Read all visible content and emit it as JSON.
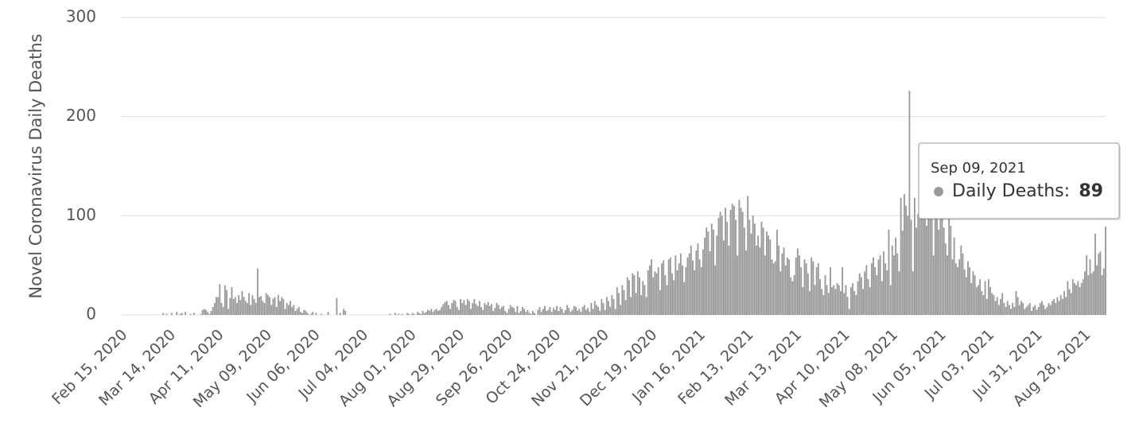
{
  "chart_data": {
    "type": "bar",
    "y_label": "Novel Coronavirus Daily Deaths",
    "color": "#999999",
    "ylim": [
      0,
      300
    ],
    "yticks": [
      0,
      100,
      200,
      300
    ],
    "grid": true,
    "tooltip": {
      "date": "Sep 09, 2021",
      "label": "Daily Deaths:"
    },
    "categories": [
      "Feb 15, 2020",
      null,
      null,
      null,
      null,
      null,
      null,
      null,
      null,
      null,
      null,
      null,
      null,
      null,
      null,
      null,
      null,
      null,
      null,
      null,
      null,
      null,
      null,
      null,
      null,
      null,
      null,
      null,
      "Mar 14, 2020",
      null,
      null,
      null,
      null,
      null,
      null,
      null,
      null,
      null,
      null,
      null,
      null,
      null,
      null,
      null,
      null,
      null,
      null,
      null,
      null,
      null,
      null,
      null,
      null,
      null,
      null,
      null,
      "Apr 11, 2020",
      null,
      null,
      null,
      null,
      null,
      null,
      null,
      null,
      null,
      null,
      null,
      null,
      null,
      null,
      null,
      null,
      null,
      null,
      null,
      null,
      null,
      null,
      null,
      null,
      null,
      null,
      null,
      "May 09, 2020",
      null,
      null,
      null,
      null,
      null,
      null,
      null,
      null,
      null,
      null,
      null,
      null,
      null,
      null,
      null,
      null,
      null,
      null,
      null,
      null,
      null,
      null,
      null,
      null,
      null,
      null,
      null,
      "Jun 06, 2020",
      null,
      null,
      null,
      null,
      null,
      null,
      null,
      null,
      null,
      null,
      null,
      null,
      null,
      null,
      null,
      null,
      null,
      null,
      null,
      null,
      null,
      null,
      null,
      null,
      null,
      null,
      null,
      "Jul 04, 2020",
      null,
      null,
      null,
      null,
      null,
      null,
      null,
      null,
      null,
      null,
      null,
      null,
      null,
      null,
      null,
      null,
      null,
      null,
      null,
      null,
      null,
      null,
      null,
      null,
      null,
      null,
      null,
      "Aug 01, 2020",
      null,
      null,
      null,
      null,
      null,
      null,
      null,
      null,
      null,
      null,
      null,
      null,
      null,
      null,
      null,
      null,
      null,
      null,
      null,
      null,
      null,
      null,
      null,
      null,
      null,
      null,
      null,
      "Aug 29, 2020",
      null,
      null,
      null,
      null,
      null,
      null,
      null,
      null,
      null,
      null,
      null,
      null,
      null,
      null,
      null,
      null,
      null,
      null,
      null,
      null,
      null,
      null,
      null,
      null,
      null,
      null,
      null,
      "Sep 26, 2020",
      null,
      null,
      null,
      null,
      null,
      null,
      null,
      null,
      null,
      null,
      null,
      null,
      null,
      null,
      null,
      null,
      null,
      null,
      null,
      null,
      null,
      null,
      null,
      null,
      null,
      null,
      null,
      "Oct 24, 2020",
      null,
      null,
      null,
      null,
      null,
      null,
      null,
      null,
      null,
      null,
      null,
      null,
      null,
      null,
      null,
      null,
      null,
      null,
      null,
      null,
      null,
      null,
      null,
      null,
      null,
      null,
      null,
      "Nov 21, 2020",
      null,
      null,
      null,
      null,
      null,
      null,
      null,
      null,
      null,
      null,
      null,
      null,
      null,
      null,
      null,
      null,
      null,
      null,
      null,
      null,
      null,
      null,
      null,
      null,
      null,
      null,
      null,
      "Dec 19, 2020",
      null,
      null,
      null,
      null,
      null,
      null,
      null,
      null,
      null,
      null,
      null,
      null,
      null,
      null,
      null,
      null,
      null,
      null,
      null,
      null,
      null,
      null,
      null,
      null,
      null,
      null,
      null,
      "Jan 16, 2021",
      null,
      null,
      null,
      null,
      null,
      null,
      null,
      null,
      null,
      null,
      null,
      null,
      null,
      null,
      null,
      null,
      null,
      null,
      null,
      null,
      null,
      null,
      null,
      null,
      null,
      null,
      null,
      "Feb 13, 2021",
      null,
      null,
      null,
      null,
      null,
      null,
      null,
      null,
      null,
      null,
      null,
      null,
      null,
      null,
      null,
      null,
      null,
      null,
      null,
      null,
      null,
      null,
      null,
      null,
      null,
      null,
      null,
      "Mar 13, 2021",
      null,
      null,
      null,
      null,
      null,
      null,
      null,
      null,
      null,
      null,
      null,
      null,
      null,
      null,
      null,
      null,
      null,
      null,
      null,
      null,
      null,
      null,
      null,
      null,
      null,
      null,
      null,
      "Apr 10, 2021",
      null,
      null,
      null,
      null,
      null,
      null,
      null,
      null,
      null,
      null,
      null,
      null,
      null,
      null,
      null,
      null,
      null,
      null,
      null,
      null,
      null,
      null,
      null,
      null,
      null,
      null,
      null,
      "May 08, 2021",
      null,
      null,
      null,
      null,
      null,
      null,
      null,
      null,
      null,
      null,
      null,
      null,
      null,
      null,
      null,
      null,
      null,
      null,
      null,
      null,
      null,
      null,
      null,
      null,
      null,
      null,
      null,
      "Jun 05, 2021",
      null,
      null,
      null,
      null,
      null,
      null,
      null,
      null,
      null,
      null,
      null,
      null,
      null,
      null,
      null,
      null,
      null,
      null,
      null,
      null,
      null,
      null,
      null,
      null,
      null,
      null,
      null,
      "Jul 03, 2021",
      null,
      null,
      null,
      null,
      null,
      null,
      null,
      null,
      null,
      null,
      null,
      null,
      null,
      null,
      null,
      null,
      null,
      null,
      null,
      null,
      null,
      null,
      null,
      null,
      null,
      null,
      null,
      "Jul 31, 2021",
      null,
      null,
      null,
      null,
      null,
      null,
      null,
      null,
      null,
      null,
      null,
      null,
      null,
      null,
      null,
      null,
      null,
      null,
      null,
      null,
      null,
      null,
      null,
      null,
      null,
      null,
      null,
      "Aug 28, 2021",
      null,
      null,
      null,
      null,
      null,
      null,
      null,
      null,
      null,
      null,
      null,
      null
    ],
    "values": [
      0,
      0,
      0,
      0,
      0,
      0,
      0,
      0,
      0,
      0,
      0,
      0,
      0,
      0,
      0,
      0,
      0,
      0,
      0,
      0,
      0,
      0,
      0,
      0,
      2,
      0,
      1,
      0,
      0,
      2,
      0,
      0,
      3,
      0,
      1,
      2,
      0,
      3,
      0,
      0,
      1,
      0,
      2,
      0,
      0,
      0,
      1,
      5,
      6,
      5,
      3,
      1,
      4,
      8,
      12,
      18,
      18,
      31,
      12,
      8,
      30,
      25,
      6,
      17,
      28,
      16,
      18,
      12,
      20,
      15,
      24,
      18,
      14,
      12,
      22,
      10,
      20,
      16,
      12,
      47,
      18,
      19,
      14,
      12,
      22,
      20,
      18,
      10,
      16,
      18,
      8,
      20,
      14,
      18,
      16,
      6,
      12,
      10,
      14,
      8,
      10,
      4,
      6,
      8,
      3,
      2,
      5,
      4,
      2,
      0,
      1,
      3,
      0,
      2,
      0,
      0,
      1,
      0,
      0,
      0,
      3,
      0,
      0,
      0,
      0,
      17,
      0,
      2,
      0,
      6,
      4,
      0,
      0,
      0,
      0,
      0,
      0,
      0,
      0,
      0,
      0,
      0,
      0,
      0,
      0,
      0,
      0,
      0,
      0,
      0,
      0,
      0,
      0,
      0,
      0,
      0,
      1,
      0,
      0,
      2,
      0,
      1,
      0,
      1,
      0,
      0,
      2,
      1,
      0,
      2,
      1,
      0,
      3,
      2,
      1,
      4,
      2,
      3,
      5,
      4,
      6,
      3,
      5,
      6,
      4,
      5,
      8,
      11,
      13,
      14,
      10,
      6,
      12,
      15,
      14,
      8,
      5,
      16,
      12,
      15,
      10,
      16,
      14,
      6,
      12,
      16,
      11,
      9,
      14,
      8,
      5,
      12,
      10,
      13,
      9,
      11,
      4,
      7,
      12,
      10,
      6,
      8,
      9,
      4,
      2,
      6,
      10,
      8,
      7,
      3,
      9,
      2,
      4,
      8,
      6,
      3,
      5,
      2,
      1,
      4,
      2,
      0,
      5,
      8,
      3,
      6,
      9,
      4,
      5,
      8,
      3,
      7,
      5,
      9,
      4,
      8,
      6,
      2,
      5,
      10,
      7,
      3,
      5,
      9,
      8,
      4,
      6,
      3,
      8,
      10,
      5,
      7,
      3,
      12,
      6,
      14,
      10,
      8,
      4,
      16,
      12,
      5,
      18,
      14,
      8,
      20,
      16,
      6,
      28,
      22,
      10,
      30,
      25,
      15,
      38,
      35,
      18,
      42,
      40,
      22,
      44,
      38,
      20,
      34,
      30,
      18,
      45,
      50,
      56,
      38,
      44,
      42,
      48,
      25,
      52,
      55,
      40,
      30,
      56,
      58,
      42,
      35,
      60,
      45,
      52,
      62,
      50,
      33,
      48,
      58,
      62,
      70,
      55,
      45,
      65,
      72,
      56,
      48,
      66,
      78,
      88,
      84,
      64,
      92,
      86,
      50,
      80,
      98,
      104,
      100,
      75,
      108,
      94,
      70,
      106,
      112,
      110,
      96,
      60,
      116,
      108,
      104,
      88,
      65,
      120,
      96,
      82,
      100,
      92,
      70,
      80,
      68,
      94,
      88,
      60,
      84,
      80,
      76,
      56,
      52,
      54,
      86,
      70,
      44,
      62,
      68,
      50,
      58,
      56,
      38,
      34,
      40,
      58,
      67,
      60,
      48,
      28,
      56,
      52,
      42,
      24,
      58,
      54,
      30,
      48,
      52,
      36,
      26,
      20,
      40,
      30,
      22,
      48,
      28,
      30,
      26,
      32,
      30,
      24,
      48,
      22,
      30,
      18,
      6,
      28,
      32,
      24,
      20,
      34,
      42,
      38,
      26,
      44,
      50,
      36,
      28,
      52,
      58,
      48,
      40,
      56,
      60,
      34,
      64,
      52,
      45,
      86,
      30,
      70,
      60,
      78,
      62,
      44,
      118,
      85,
      122,
      110,
      100,
      226,
      96,
      44,
      118,
      88,
      102,
      100,
      108,
      110,
      112,
      90,
      116,
      104,
      120,
      60,
      100,
      108,
      86,
      98,
      104,
      88,
      72,
      60,
      100,
      90,
      56,
      78,
      52,
      48,
      56,
      70,
      62,
      46,
      38,
      54,
      48,
      32,
      44,
      40,
      28,
      30,
      36,
      24,
      20,
      34,
      16,
      36,
      28,
      22,
      20,
      14,
      18,
      10,
      16,
      22,
      12,
      8,
      14,
      10,
      6,
      12,
      8,
      24,
      18,
      10,
      14,
      12,
      6,
      8,
      10,
      12,
      4,
      8,
      10,
      5,
      8,
      12,
      14,
      10,
      6,
      8,
      12,
      10,
      14,
      16,
      12,
      18,
      14,
      20,
      16,
      24,
      18,
      34,
      26,
      22,
      36,
      32,
      30,
      34,
      28,
      32,
      36,
      44,
      60,
      40,
      56,
      42,
      44,
      82,
      50,
      62,
      64,
      40,
      47,
      89
    ]
  }
}
